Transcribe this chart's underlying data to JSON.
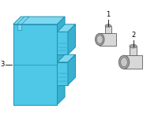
{
  "bg_color": "#ffffff",
  "fill_blue": "#4fc8e8",
  "fill_blue_dark": "#3ab0d0",
  "fill_blue_top": "#7dd8f0",
  "edge_blue": "#2090b0",
  "fill_gray": "#c8c8c8",
  "fill_gray_light": "#d8d8d8",
  "fill_gray_dark": "#a0a0a0",
  "edge_gray": "#606060",
  "label_color": "#000000",
  "label_fontsize": 6.0,
  "fig_width": 2.0,
  "fig_height": 1.47,
  "dpi": 100
}
